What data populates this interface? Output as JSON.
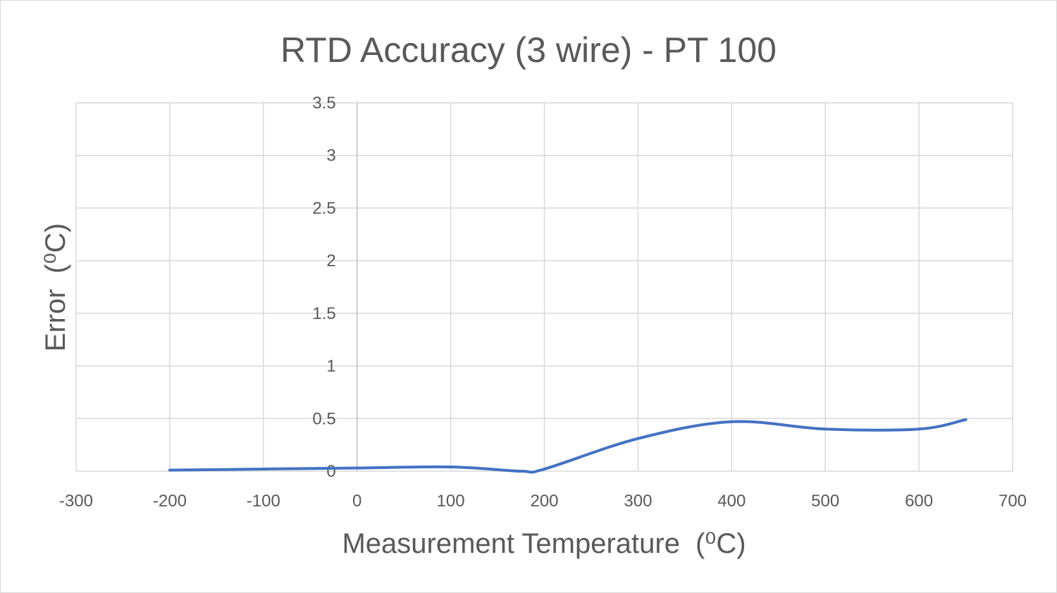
{
  "chart_data": {
    "type": "line",
    "title": "RTD Accuracy (3 wire) - PT 100",
    "xlabel": "Measurement Temperature",
    "xlabel_unit": "(⁰C)",
    "ylabel": "Error",
    "ylabel_unit": "(⁰C)",
    "xlim": [
      -300,
      700
    ],
    "ylim": [
      0,
      3.5
    ],
    "xticks": [
      -300,
      -200,
      -100,
      0,
      100,
      200,
      300,
      400,
      500,
      600,
      700
    ],
    "yticks": [
      0,
      0.5,
      1,
      1.5,
      2,
      2.5,
      3,
      3.5
    ],
    "xtick_labels": [
      "-300",
      "-200",
      "-100",
      "0",
      "100",
      "200",
      "300",
      "400",
      "500",
      "600",
      "700"
    ],
    "ytick_labels": [
      "0",
      "0.5",
      "1",
      "1.5",
      "2",
      "2.5",
      "3",
      "3.5"
    ],
    "grid": true,
    "legend": "none",
    "series": [
      {
        "color": "#4472c4",
        "smooth": true,
        "x": [
          -200,
          -100,
          0,
          100,
          175,
          200,
          300,
          400,
          500,
          600,
          650
        ],
        "y": [
          0.01,
          0.02,
          0.03,
          0.04,
          0.0,
          0.02,
          0.31,
          0.47,
          0.4,
          0.4,
          0.49
        ]
      }
    ]
  }
}
